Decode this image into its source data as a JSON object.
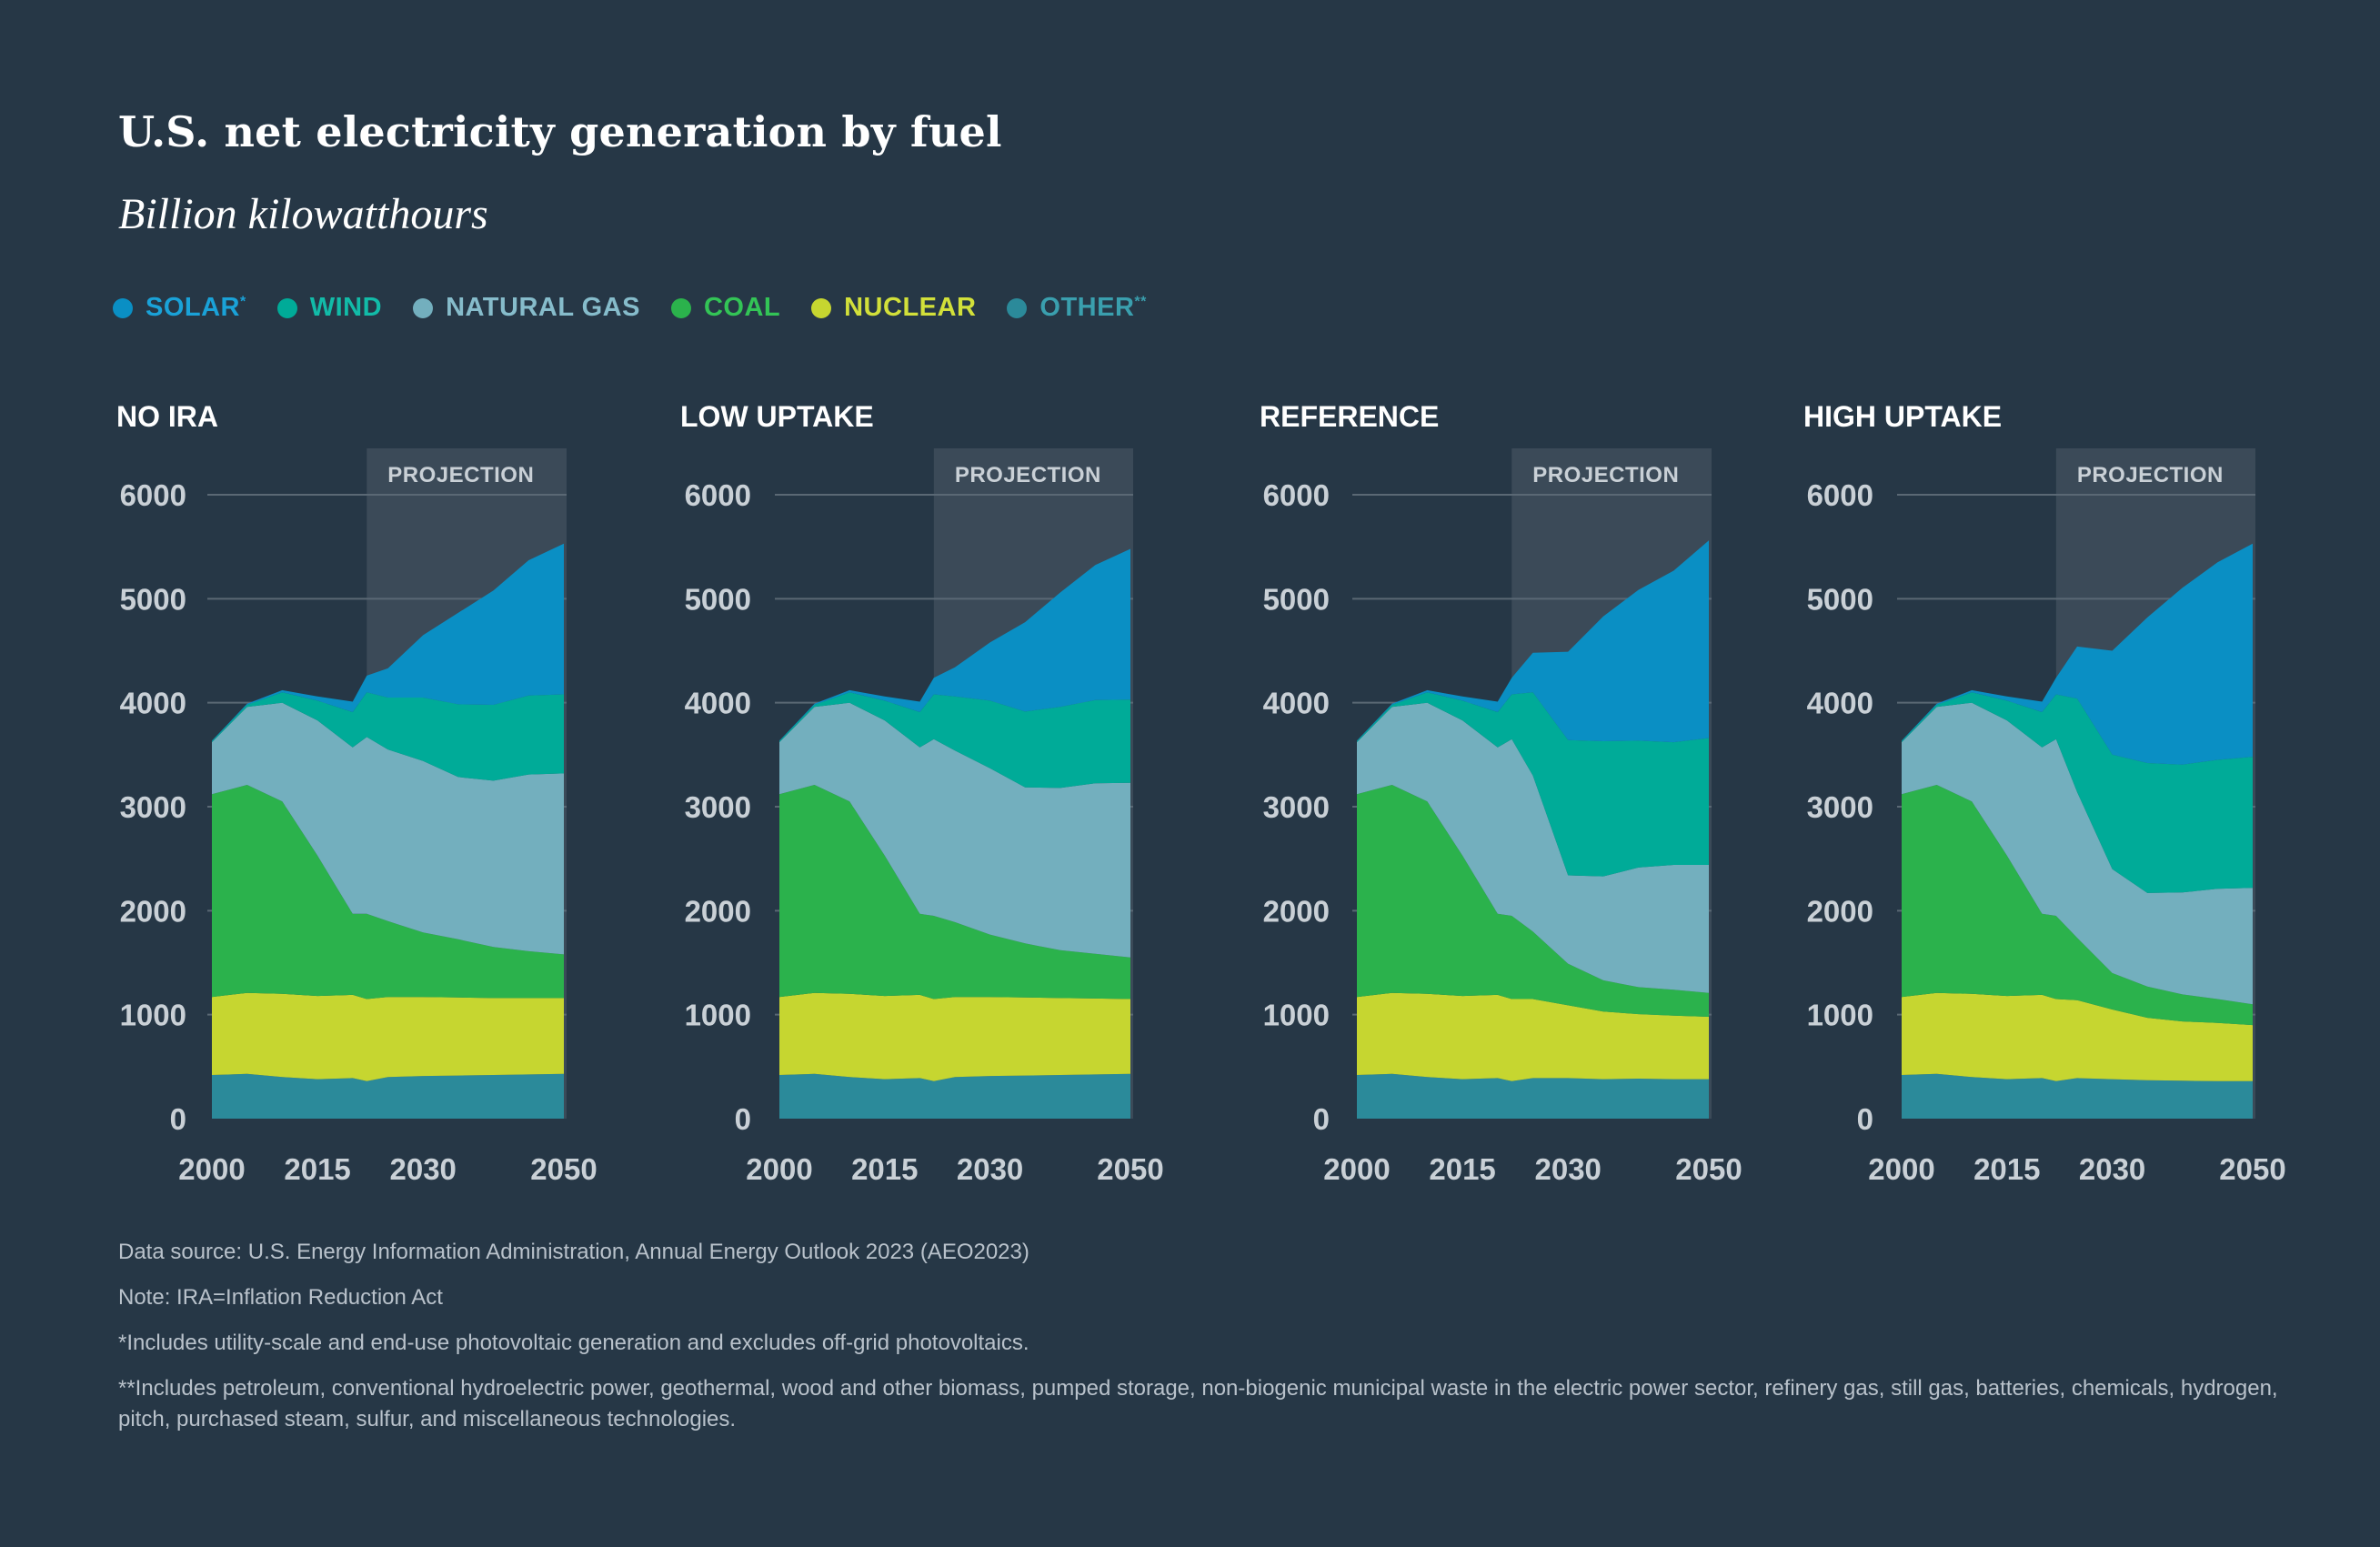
{
  "title": "U.S. net electricity generation by fuel",
  "subtitle": "Billion kilowatthours",
  "legend": [
    {
      "key": "solar",
      "label": "SOLAR",
      "sup": "*",
      "color": "#0a8fc4",
      "icon": "circle-icon"
    },
    {
      "key": "wind",
      "label": "WIND",
      "sup": "",
      "color": "#00ab98",
      "icon": "circle-icon"
    },
    {
      "key": "gas",
      "label": "NATURAL GAS",
      "sup": "",
      "color": "#73afbe",
      "icon": "circle-icon"
    },
    {
      "key": "coal",
      "label": "COAL",
      "sup": "",
      "color": "#2bb24c",
      "icon": "circle-icon"
    },
    {
      "key": "nuclear",
      "label": "NUCLEAR",
      "sup": "",
      "color": "#c6d630",
      "icon": "circle-icon"
    },
    {
      "key": "other",
      "label": "OTHER",
      "sup": "**",
      "color": "#2b8a9a",
      "icon": "circle-icon"
    }
  ],
  "legend_label_colors": {
    "solar": "#1aa2d8",
    "wind": "#12bba8",
    "gas": "#86bccb",
    "coal": "#33c456",
    "nuclear": "#d2e03a",
    "other": "#3a9fae"
  },
  "projection_label": "PROJECTION",
  "chart_data": [
    {
      "type": "area",
      "stacked": true,
      "title": "NO IRA",
      "x": [
        2000,
        2005,
        2010,
        2015,
        2020,
        2022,
        2025,
        2030,
        2035,
        2040,
        2045,
        2050
      ],
      "projection_start": 2022,
      "ylim": [
        0,
        6000
      ],
      "yticks": [
        0,
        1000,
        2000,
        3000,
        4000,
        5000,
        6000
      ],
      "xticks": [
        2000,
        2015,
        2030,
        2050
      ],
      "series": [
        {
          "name": "OTHER",
          "values": [
            420,
            430,
            400,
            380,
            390,
            360,
            400,
            410,
            415,
            420,
            425,
            430
          ]
        },
        {
          "name": "NUCLEAR",
          "values": [
            750,
            780,
            800,
            800,
            800,
            790,
            770,
            760,
            750,
            740,
            735,
            730
          ]
        },
        {
          "name": "COAL",
          "values": [
            1950,
            2000,
            1850,
            1350,
            780,
            820,
            730,
            620,
            560,
            490,
            450,
            420
          ]
        },
        {
          "name": "NATURAL GAS",
          "values": [
            500,
            750,
            950,
            1300,
            1600,
            1700,
            1650,
            1650,
            1560,
            1600,
            1700,
            1740
          ]
        },
        {
          "name": "WIND",
          "values": [
            10,
            20,
            100,
            190,
            340,
            430,
            500,
            610,
            700,
            730,
            760,
            760
          ]
        },
        {
          "name": "SOLAR",
          "values": [
            5,
            10,
            20,
            40,
            100,
            160,
            280,
            600,
            880,
            1100,
            1300,
            1450
          ]
        }
      ]
    },
    {
      "type": "area",
      "stacked": true,
      "title": "LOW UPTAKE",
      "x": [
        2000,
        2005,
        2010,
        2015,
        2020,
        2022,
        2025,
        2030,
        2035,
        2040,
        2045,
        2050
      ],
      "projection_start": 2022,
      "ylim": [
        0,
        6000
      ],
      "yticks": [
        0,
        1000,
        2000,
        3000,
        4000,
        5000,
        6000
      ],
      "xticks": [
        2000,
        2015,
        2030,
        2050
      ],
      "series": [
        {
          "name": "OTHER",
          "values": [
            420,
            430,
            400,
            380,
            390,
            360,
            400,
            410,
            415,
            420,
            425,
            430
          ]
        },
        {
          "name": "NUCLEAR",
          "values": [
            750,
            780,
            800,
            800,
            800,
            790,
            770,
            760,
            750,
            740,
            730,
            720
          ]
        },
        {
          "name": "COAL",
          "values": [
            1950,
            2000,
            1850,
            1350,
            780,
            800,
            720,
            600,
            520,
            460,
            430,
            400
          ]
        },
        {
          "name": "NATURAL GAS",
          "values": [
            500,
            750,
            950,
            1300,
            1600,
            1700,
            1650,
            1600,
            1500,
            1560,
            1640,
            1680
          ]
        },
        {
          "name": "WIND",
          "values": [
            10,
            20,
            100,
            190,
            340,
            430,
            520,
            650,
            730,
            780,
            800,
            800
          ]
        },
        {
          "name": "SOLAR",
          "values": [
            5,
            10,
            20,
            40,
            100,
            160,
            280,
            560,
            860,
            1100,
            1300,
            1450
          ]
        }
      ]
    },
    {
      "type": "area",
      "stacked": true,
      "title": "REFERENCE",
      "x": [
        2000,
        2005,
        2010,
        2015,
        2020,
        2022,
        2025,
        2030,
        2035,
        2040,
        2045,
        2050
      ],
      "projection_start": 2022,
      "ylim": [
        0,
        6000
      ],
      "yticks": [
        0,
        1000,
        2000,
        3000,
        4000,
        5000,
        6000
      ],
      "xticks": [
        2000,
        2015,
        2030,
        2050
      ],
      "series": [
        {
          "name": "OTHER",
          "values": [
            420,
            430,
            400,
            380,
            390,
            360,
            390,
            390,
            380,
            385,
            380,
            380
          ]
        },
        {
          "name": "NUCLEAR",
          "values": [
            750,
            780,
            800,
            800,
            800,
            790,
            760,
            700,
            650,
            620,
            610,
            600
          ]
        },
        {
          "name": "COAL",
          "values": [
            1950,
            2000,
            1850,
            1350,
            780,
            800,
            650,
            400,
            300,
            260,
            250,
            230
          ]
        },
        {
          "name": "NATURAL GAS",
          "values": [
            500,
            750,
            950,
            1300,
            1600,
            1700,
            1500,
            850,
            1000,
            1150,
            1200,
            1230
          ]
        },
        {
          "name": "WIND",
          "values": [
            10,
            20,
            100,
            190,
            340,
            430,
            800,
            1300,
            1300,
            1220,
            1180,
            1220
          ]
        },
        {
          "name": "SOLAR",
          "values": [
            5,
            10,
            20,
            40,
            100,
            160,
            380,
            850,
            1200,
            1450,
            1650,
            1900
          ]
        }
      ]
    },
    {
      "type": "area",
      "stacked": true,
      "title": "HIGH UPTAKE",
      "x": [
        2000,
        2005,
        2010,
        2015,
        2020,
        2022,
        2025,
        2030,
        2035,
        2040,
        2045,
        2050
      ],
      "projection_start": 2022,
      "ylim": [
        0,
        6000
      ],
      "yticks": [
        0,
        1000,
        2000,
        3000,
        4000,
        5000,
        6000
      ],
      "xticks": [
        2000,
        2015,
        2030,
        2050
      ],
      "series": [
        {
          "name": "OTHER",
          "values": [
            420,
            430,
            400,
            380,
            390,
            360,
            390,
            380,
            370,
            365,
            360,
            360
          ]
        },
        {
          "name": "NUCLEAR",
          "values": [
            750,
            780,
            800,
            800,
            800,
            790,
            750,
            670,
            600,
            570,
            560,
            540
          ]
        },
        {
          "name": "COAL",
          "values": [
            1950,
            2000,
            1850,
            1350,
            780,
            800,
            600,
            350,
            300,
            260,
            230,
            200
          ]
        },
        {
          "name": "NATURAL GAS",
          "values": [
            500,
            750,
            950,
            1300,
            1600,
            1700,
            1400,
            1000,
            900,
            980,
            1060,
            1120
          ]
        },
        {
          "name": "WIND",
          "values": [
            10,
            20,
            100,
            190,
            340,
            430,
            900,
            1100,
            1250,
            1230,
            1240,
            1260
          ]
        },
        {
          "name": "SOLAR",
          "values": [
            5,
            10,
            20,
            40,
            100,
            160,
            500,
            1000,
            1400,
            1700,
            1900,
            2050
          ]
        }
      ]
    }
  ],
  "notes": [
    "Data source: U.S. Energy Information Administration, Annual Energy Outlook 2023 (AEO2023)",
    "Note: IRA=Inflation Reduction Act",
    "*Includes utility-scale and end-use photovoltaic generation and excludes off-grid photovoltaics.",
    "**Includes petroleum, conventional hydroelectric power, geothermal, wood and other biomass, pumped storage, non-biogenic municipal waste in the electric power sector, refinery gas, still gas, batteries, chemicals, hydrogen, pitch, purchased steam, sulfur, and miscellaneous technologies."
  ]
}
